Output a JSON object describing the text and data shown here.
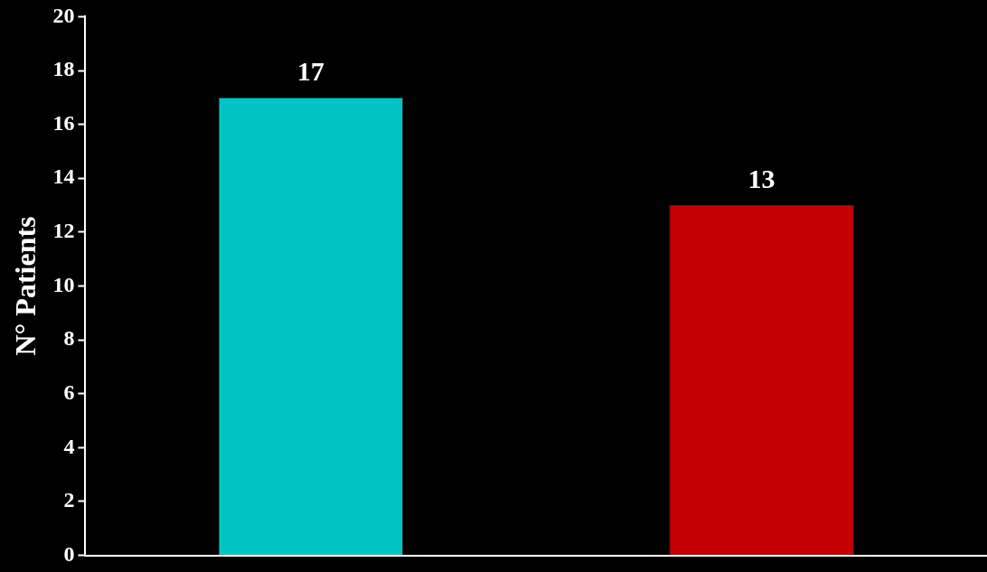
{
  "chart_data": {
    "type": "bar",
    "ylabel": "N° Patients",
    "categories": [
      null,
      null
    ],
    "values": [
      17,
      13
    ],
    "colors": [
      "#00c4c4",
      "#c40000"
    ],
    "ylim": [
      0,
      20
    ],
    "yticks": [
      0,
      2,
      4,
      6,
      8,
      10,
      12,
      14,
      16,
      18,
      20
    ],
    "grid": false,
    "data_labels": true
  }
}
